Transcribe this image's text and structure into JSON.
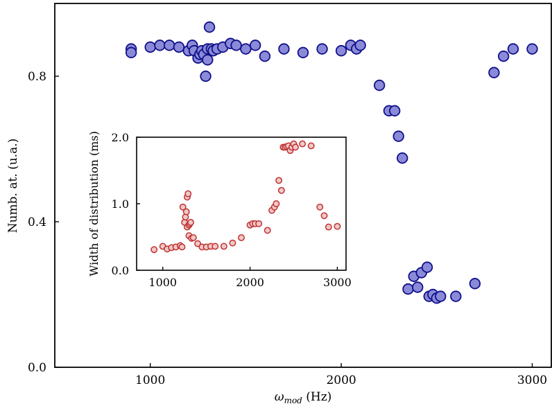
{
  "chart_data": [
    {
      "type": "scatter",
      "xlabel_symbol": "ω",
      "xlabel_sub": "mod",
      "xlabel_unit": " (Hz)",
      "ylabel": "Numb. at. (u.a.)",
      "xlim": [
        500,
        3100
      ],
      "ylim": [
        0.0,
        1.0
      ],
      "xticks": [
        1000,
        2000,
        3000
      ],
      "yticks": [
        0.0,
        0.4,
        0.8
      ],
      "ytick_labels": [
        "0.0",
        "0.4",
        "0.8"
      ],
      "marker_fill": "#8a8ad8",
      "marker_stroke": "#10108a",
      "series": [
        {
          "x": [
            900,
            900,
            1000,
            1050,
            1100,
            1150,
            1200,
            1220,
            1230,
            1250,
            1260,
            1270,
            1280,
            1290,
            1300,
            1300,
            1310,
            1320,
            1330,
            1350,
            1380,
            1420,
            1450,
            1500,
            1550,
            1600,
            1700,
            1800,
            1900,
            2000,
            2050,
            2080,
            2100,
            2200,
            2250,
            2280,
            2300,
            2320,
            2350,
            2380,
            2400,
            2420,
            2450,
            2460,
            2480,
            2500,
            2520,
            2600,
            2700,
            2800,
            2850,
            2900,
            3000
          ],
          "y": [
            0.875,
            0.865,
            0.88,
            0.885,
            0.885,
            0.88,
            0.87,
            0.885,
            0.87,
            0.85,
            0.86,
            0.87,
            0.86,
            0.8,
            0.875,
            0.845,
            0.935,
            0.875,
            0.87,
            0.875,
            0.88,
            0.89,
            0.885,
            0.875,
            0.885,
            0.855,
            0.875,
            0.865,
            0.875,
            0.87,
            0.885,
            0.875,
            0.885,
            0.775,
            0.705,
            0.705,
            0.635,
            0.575,
            0.215,
            0.25,
            0.22,
            0.26,
            0.275,
            0.195,
            0.2,
            0.19,
            0.195,
            0.195,
            0.23,
            0.81,
            0.855,
            0.875,
            0.875
          ]
        }
      ]
    },
    {
      "type": "scatter",
      "xlabel": "",
      "ylabel": "Width of distribution (ms)",
      "xlim": [
        700,
        3100
      ],
      "ylim": [
        0.0,
        2.0
      ],
      "xticks": [
        1000,
        2000,
        3000
      ],
      "yticks": [
        0.0,
        1.0,
        2.0
      ],
      "ytick_labels": [
        "0.0",
        "1.0",
        "2.0"
      ],
      "marker_fill": "#f0c8c8",
      "marker_stroke": "#c03030",
      "series": [
        {
          "x": [
            900,
            1000,
            1050,
            1100,
            1150,
            1200,
            1220,
            1230,
            1250,
            1260,
            1270,
            1280,
            1280,
            1290,
            1300,
            1300,
            1310,
            1320,
            1330,
            1350,
            1400,
            1450,
            1500,
            1550,
            1600,
            1700,
            1800,
            1900,
            2000,
            2030,
            2060,
            2100,
            2200,
            2250,
            2280,
            2300,
            2330,
            2360,
            2380,
            2400,
            2420,
            2440,
            2460,
            2480,
            2500,
            2520,
            2600,
            2700,
            2800,
            2850,
            2900,
            3000
          ],
          "y": [
            0.31,
            0.36,
            0.32,
            0.34,
            0.35,
            0.37,
            0.35,
            0.95,
            0.72,
            0.8,
            0.88,
            0.65,
            1.1,
            1.15,
            0.52,
            0.68,
            0.7,
            0.72,
            0.48,
            0.49,
            0.4,
            0.35,
            0.35,
            0.36,
            0.36,
            0.36,
            0.41,
            0.49,
            0.68,
            0.7,
            0.7,
            0.7,
            0.6,
            0.9,
            0.95,
            1.0,
            1.35,
            1.2,
            1.85,
            1.85,
            1.86,
            1.87,
            1.8,
            1.85,
            1.9,
            1.85,
            1.9,
            1.87,
            0.95,
            0.82,
            0.65,
            0.66
          ]
        }
      ]
    }
  ]
}
